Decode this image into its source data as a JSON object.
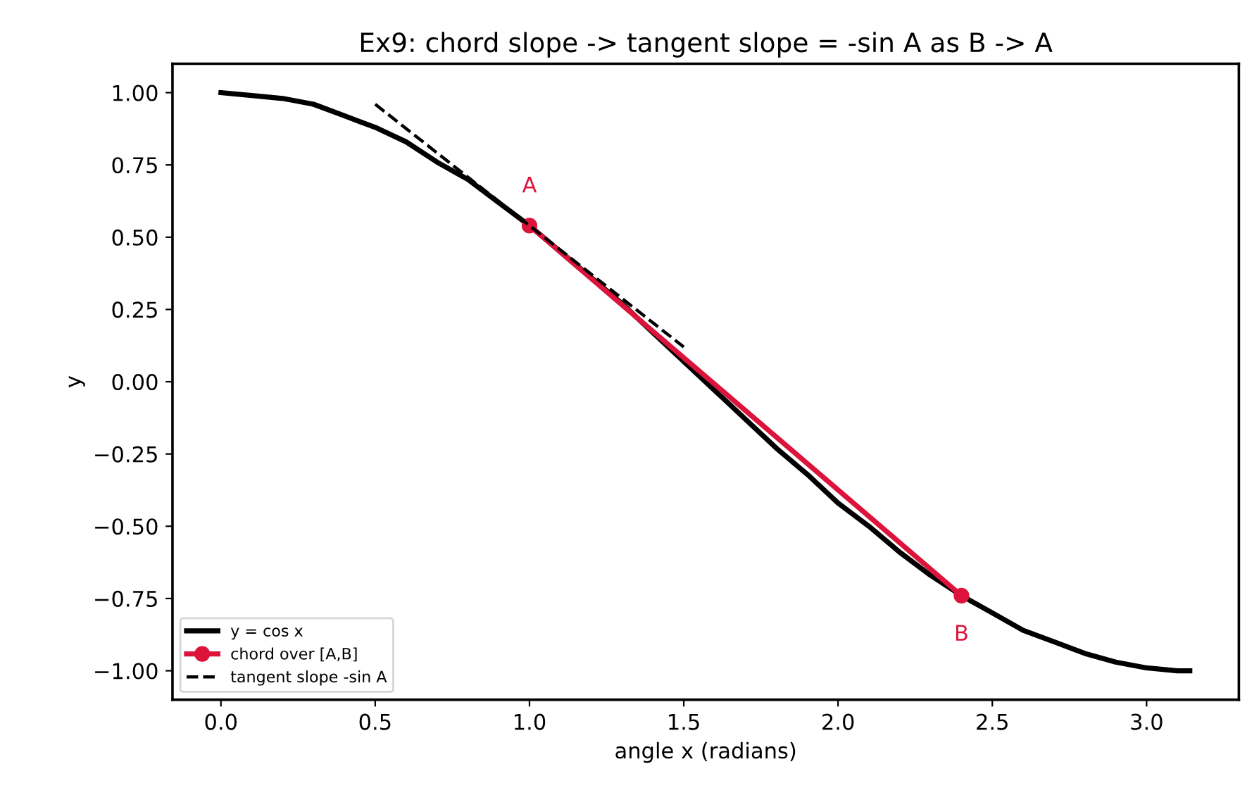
{
  "chart_data": {
    "type": "line",
    "title": "Ex9: chord slope -> tangent slope = -sin A as B -> A",
    "xlabel": "angle x (radians)",
    "ylabel": "y",
    "series": [
      {
        "name": "y = cos x",
        "color": "#000000",
        "line_style": "solid",
        "marker": "none",
        "x": [
          0,
          0.1,
          0.2,
          0.3,
          0.4,
          0.5,
          0.6,
          0.7,
          0.8,
          0.9,
          1.0,
          1.1,
          1.2,
          1.3,
          1.4,
          1.5,
          1.6,
          1.7,
          1.8,
          1.9,
          2.0,
          2.1,
          2.2,
          2.3,
          2.4,
          2.5,
          2.6,
          2.7,
          2.8,
          2.9,
          3.0,
          3.1,
          3.14
        ],
        "values": [
          1.0,
          0.99,
          0.98,
          0.96,
          0.92,
          0.88,
          0.83,
          0.76,
          0.7,
          0.62,
          0.54,
          0.45,
          0.36,
          0.27,
          0.17,
          0.07,
          -0.03,
          -0.13,
          -0.23,
          -0.32,
          -0.42,
          -0.5,
          -0.59,
          -0.67,
          -0.74,
          -0.8,
          -0.86,
          -0.9,
          -0.94,
          -0.97,
          -0.99,
          -1.0,
          -1.0
        ]
      },
      {
        "name": "chord over [A,B]",
        "color": "#dc143c",
        "line_style": "solid",
        "marker": "circle",
        "x": [
          1.0,
          2.4
        ],
        "values": [
          0.54,
          -0.74
        ]
      },
      {
        "name": "tangent slope -sin A",
        "color": "#000000",
        "line_style": "dashed",
        "marker": "none",
        "x": [
          0.5,
          1.5
        ],
        "values": [
          0.96,
          0.12
        ]
      }
    ],
    "annotations": [
      {
        "text": "A",
        "x": 1.0,
        "y": 0.54
      },
      {
        "text": "B",
        "x": 2.4,
        "y": -0.74
      }
    ],
    "xlim": [
      -0.157,
      3.299
    ],
    "xticks": [
      {
        "value": 0,
        "label": "0.0"
      },
      0.5,
      {
        "value": 1,
        "label": "1.0"
      },
      1.5,
      {
        "value": 2,
        "label": "2.0"
      },
      2.5,
      {
        "value": 3,
        "label": "3.0"
      }
    ],
    "ylim": [
      -1.1,
      1.1
    ],
    "yticks": [
      {
        "value": -1,
        "label": "−1.00"
      },
      {
        "value": -0.75,
        "label": "−0.75"
      },
      {
        "value": -0.5,
        "label": "−0.50"
      },
      {
        "value": -0.25,
        "label": "−0.25"
      },
      {
        "value": 0,
        "label": "0.00"
      },
      {
        "value": 0.25,
        "label": "0.25"
      },
      {
        "value": 0.5,
        "label": "0.50"
      },
      {
        "value": 0.75,
        "label": "0.75"
      },
      {
        "value": 1,
        "label": "1.00"
      }
    ],
    "grid": false,
    "legend": "bottom left"
  }
}
